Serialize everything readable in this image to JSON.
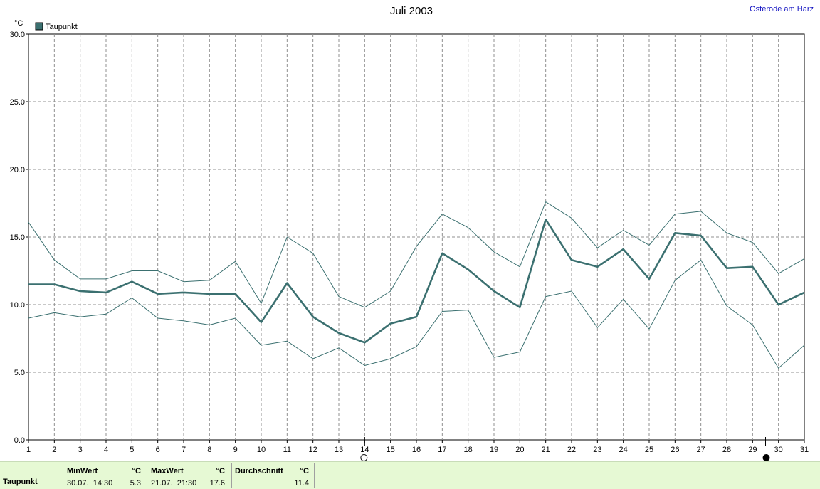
{
  "header": {
    "title": "Juli 2003",
    "location": "Osterode am Harz"
  },
  "legend": {
    "label": "Taupunkt",
    "swatch_color": "#3b7070"
  },
  "chart_data": {
    "type": "line",
    "title": "Juli 2003",
    "ylabel": "°C",
    "xlabel": "",
    "ylim": [
      0,
      30
    ],
    "yticks": [
      "0.0",
      "5.0",
      "10.0",
      "15.0",
      "20.0",
      "25.0",
      "30.0"
    ],
    "x": [
      1,
      2,
      3,
      4,
      5,
      6,
      7,
      8,
      9,
      10,
      11,
      12,
      13,
      14,
      15,
      16,
      17,
      18,
      19,
      20,
      21,
      22,
      23,
      24,
      25,
      26,
      27,
      28,
      29,
      30,
      31
    ],
    "grid": true,
    "legend_position": "top-left",
    "moon_markers": [
      {
        "day": 14,
        "phase": "full-moon"
      },
      {
        "day": 29.5,
        "phase": "new-moon"
      }
    ],
    "series": [
      {
        "name": "Taupunkt",
        "role": "mean",
        "color": "#3b7070",
        "values": [
          11.5,
          11.5,
          11.0,
          10.9,
          11.7,
          10.8,
          10.9,
          10.8,
          10.8,
          8.7,
          11.6,
          9.1,
          7.9,
          7.2,
          8.6,
          9.1,
          13.8,
          12.6,
          11.0,
          9.8,
          16.3,
          13.3,
          12.8,
          14.1,
          11.9,
          15.3,
          15.1,
          12.7,
          12.8,
          10.0,
          10.9
        ]
      },
      {
        "role": "max",
        "color": "#3b7070",
        "values": [
          16.1,
          13.3,
          11.9,
          11.9,
          12.5,
          12.5,
          11.7,
          11.8,
          13.2,
          10.1,
          15.0,
          13.8,
          10.6,
          9.8,
          11.0,
          14.3,
          16.7,
          15.7,
          13.9,
          12.8,
          17.6,
          16.4,
          14.2,
          15.5,
          14.4,
          16.7,
          16.9,
          15.3,
          14.6,
          12.3,
          13.4
        ]
      },
      {
        "role": "min",
        "color": "#3b7070",
        "values": [
          9.0,
          9.4,
          9.1,
          9.3,
          10.5,
          9.0,
          8.8,
          8.5,
          9.0,
          7.0,
          7.3,
          6.0,
          6.8,
          5.5,
          6.0,
          6.9,
          9.5,
          9.6,
          6.1,
          6.5,
          10.6,
          11.0,
          8.3,
          10.4,
          8.2,
          11.8,
          13.3,
          9.9,
          8.5,
          5.3,
          7.0
        ]
      }
    ]
  },
  "stats": {
    "row_label": "Taupunkt",
    "min": {
      "header": "MinWert",
      "unit": "°C",
      "datetime": "30.07.  14:30",
      "value": "5.3"
    },
    "max": {
      "header": "MaxWert",
      "unit": "°C",
      "datetime": "21.07.  21:30",
      "value": "17.6"
    },
    "avg": {
      "header": "Durchschnitt",
      "unit": "°C",
      "value": "11.4"
    }
  }
}
